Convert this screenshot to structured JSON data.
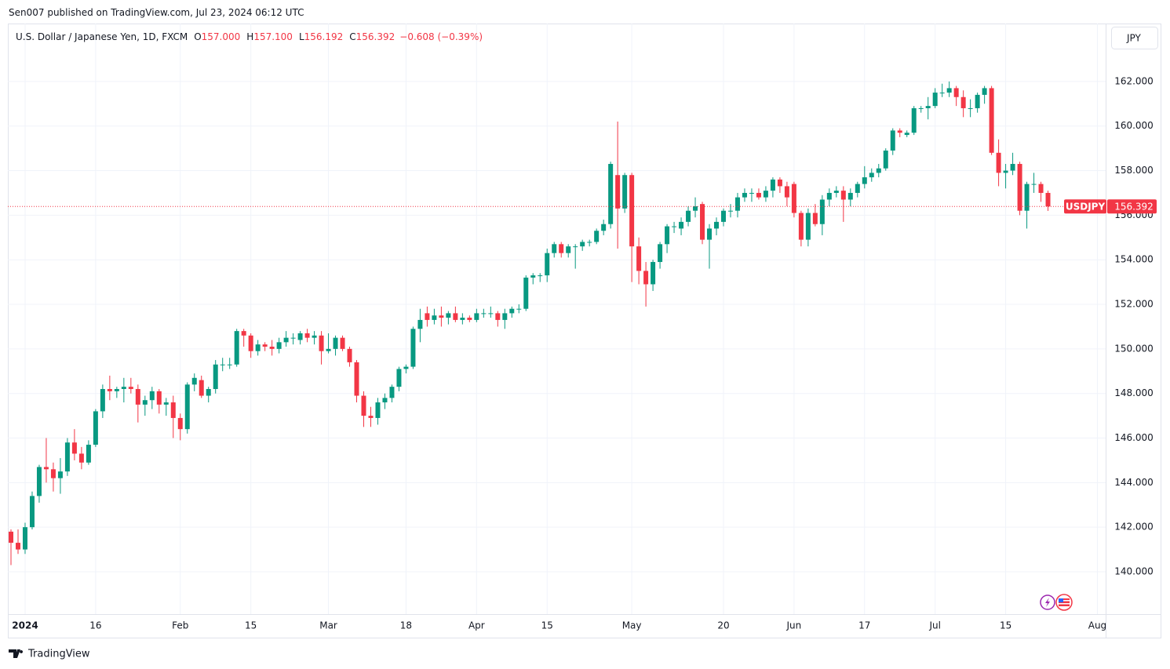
{
  "header": {
    "published": "Sen007 published on TradingView.com, Jul 23, 2024 06:12 UTC",
    "symbol": "U.S. Dollar / Japanese Yen, 1D, FXCM",
    "ohlc": [
      {
        "key": "O",
        "value": "157.000"
      },
      {
        "key": "H",
        "value": "157.100"
      },
      {
        "key": "L",
        "value": "156.192"
      },
      {
        "key": "C",
        "value": "156.392"
      }
    ],
    "change": "−0.608 (−0.39%)",
    "currency": "JPY"
  },
  "footer": {
    "brand": "TradingView"
  },
  "chart_data": {
    "type": "candlestick",
    "symbol_label": "USDJPY",
    "last_price": 156.392,
    "up_color": "#089981",
    "down_color": "#f23645",
    "grid": true,
    "ylim": [
      138.1,
      164.6
    ],
    "yticks": [
      {
        "value": 140,
        "label": "140.000"
      },
      {
        "value": 142,
        "label": "142.000"
      },
      {
        "value": 144,
        "label": "144.000"
      },
      {
        "value": 146,
        "label": "146.000"
      },
      {
        "value": 148,
        "label": "148.000"
      },
      {
        "value": 150,
        "label": "150.000"
      },
      {
        "value": 152,
        "label": "152.000"
      },
      {
        "value": 154,
        "label": "154.000"
      },
      {
        "value": 156,
        "label": "156.000"
      },
      {
        "value": 158,
        "label": "158.000"
      },
      {
        "value": 160,
        "label": "160.000"
      },
      {
        "value": 162,
        "label": "162.000"
      }
    ],
    "categories": [
      null,
      null,
      "2024",
      null,
      null,
      null,
      null,
      null,
      null,
      null,
      null,
      null,
      "16",
      null,
      null,
      null,
      null,
      null,
      null,
      null,
      null,
      null,
      null,
      null,
      "Feb",
      null,
      null,
      null,
      null,
      null,
      null,
      null,
      null,
      null,
      "15",
      null,
      null,
      null,
      null,
      null,
      null,
      null,
      null,
      null,
      null,
      "Mar",
      null,
      null,
      null,
      null,
      null,
      null,
      null,
      null,
      null,
      null,
      "18",
      null,
      null,
      null,
      null,
      null,
      null,
      null,
      null,
      null,
      "Apr",
      null,
      null,
      null,
      null,
      null,
      null,
      null,
      null,
      null,
      "15",
      null,
      null,
      null,
      null,
      null,
      null,
      null,
      null,
      null,
      null,
      null,
      "May",
      null,
      null,
      null,
      null,
      null,
      null,
      null,
      null,
      null,
      null,
      null,
      null,
      "20",
      null,
      null,
      null,
      null,
      null,
      null,
      null,
      null,
      null,
      "Jun",
      null,
      null,
      null,
      null,
      null,
      null,
      null,
      null,
      null,
      "17",
      null,
      null,
      null,
      null,
      null,
      null,
      null,
      null,
      null,
      "Jul",
      null,
      null,
      null,
      null,
      null,
      null,
      null,
      null,
      null,
      "15",
      null,
      null,
      null,
      null,
      null,
      null,
      null,
      null,
      null,
      null,
      null,
      null,
      "Aug"
    ],
    "ohlc": [
      [
        141.8,
        141.9,
        140.3,
        141.3
      ],
      [
        141.3,
        141.9,
        140.8,
        141.0
      ],
      [
        141.0,
        142.2,
        140.8,
        142.0
      ],
      [
        142.0,
        143.6,
        141.9,
        143.4
      ],
      [
        143.4,
        144.8,
        143.1,
        144.7
      ],
      [
        144.7,
        146.0,
        144.0,
        144.6
      ],
      [
        144.6,
        144.9,
        143.6,
        144.2
      ],
      [
        144.2,
        145.1,
        143.5,
        144.5
      ],
      [
        144.5,
        146.0,
        144.3,
        145.8
      ],
      [
        145.8,
        146.4,
        145.0,
        145.3
      ],
      [
        145.3,
        145.6,
        144.6,
        144.9
      ],
      [
        144.9,
        145.9,
        144.8,
        145.7
      ],
      [
        145.7,
        147.3,
        145.6,
        147.2
      ],
      [
        147.2,
        148.4,
        146.9,
        148.2
      ],
      [
        148.2,
        148.8,
        147.7,
        148.1
      ],
      [
        148.1,
        148.3,
        147.8,
        148.2
      ],
      [
        148.2,
        148.7,
        147.6,
        148.3
      ],
      [
        148.3,
        148.7,
        148.0,
        148.2
      ],
      [
        148.2,
        148.4,
        146.7,
        147.5
      ],
      [
        147.5,
        147.9,
        147.0,
        147.7
      ],
      [
        147.7,
        148.3,
        147.3,
        148.1
      ],
      [
        148.1,
        148.2,
        147.1,
        147.5
      ],
      [
        147.5,
        147.8,
        147.0,
        147.6
      ],
      [
        147.6,
        147.9,
        146.0,
        146.9
      ],
      [
        146.9,
        147.1,
        145.9,
        146.4
      ],
      [
        146.4,
        148.5,
        146.2,
        148.4
      ],
      [
        148.4,
        148.9,
        148.1,
        148.7
      ],
      [
        148.6,
        148.8,
        147.8,
        147.9
      ],
      [
        147.9,
        148.3,
        147.6,
        148.2
      ],
      [
        148.2,
        149.5,
        148.0,
        149.3
      ],
      [
        149.3,
        149.6,
        149.0,
        149.3
      ],
      [
        149.3,
        149.6,
        149.1,
        149.3
      ],
      [
        149.3,
        150.9,
        149.2,
        150.8
      ],
      [
        150.8,
        150.9,
        150.1,
        150.6
      ],
      [
        150.6,
        150.7,
        149.6,
        149.9
      ],
      [
        149.9,
        150.4,
        149.7,
        150.2
      ],
      [
        150.2,
        150.3,
        149.9,
        150.1
      ],
      [
        150.1,
        150.4,
        149.7,
        150.0
      ],
      [
        150.0,
        150.5,
        149.8,
        150.3
      ],
      [
        150.3,
        150.8,
        150.1,
        150.5
      ],
      [
        150.5,
        150.7,
        150.2,
        150.5
      ],
      [
        150.4,
        150.8,
        150.2,
        150.7
      ],
      [
        150.7,
        150.9,
        150.3,
        150.5
      ],
      [
        150.5,
        150.8,
        150.2,
        150.6
      ],
      [
        150.6,
        150.8,
        149.3,
        149.9
      ],
      [
        149.9,
        150.7,
        149.8,
        150.0
      ],
      [
        150.0,
        150.6,
        149.7,
        150.5
      ],
      [
        150.5,
        150.6,
        149.9,
        150.0
      ],
      [
        150.0,
        150.1,
        149.2,
        149.4
      ],
      [
        149.4,
        149.5,
        147.6,
        147.9
      ],
      [
        147.9,
        148.1,
        146.5,
        147.0
      ],
      [
        147.0,
        147.4,
        146.5,
        146.9
      ],
      [
        146.9,
        147.8,
        146.6,
        147.6
      ],
      [
        147.6,
        148.0,
        147.3,
        147.8
      ],
      [
        147.8,
        148.4,
        147.6,
        148.3
      ],
      [
        148.3,
        149.2,
        148.1,
        149.1
      ],
      [
        149.1,
        149.3,
        148.9,
        149.2
      ],
      [
        149.2,
        151.0,
        149.1,
        150.9
      ],
      [
        150.9,
        151.8,
        150.3,
        151.3
      ],
      [
        151.6,
        151.9,
        151.0,
        151.3
      ],
      [
        151.3,
        151.8,
        151.1,
        151.5
      ],
      [
        151.5,
        151.9,
        151.0,
        151.4
      ],
      [
        151.4,
        151.7,
        151.1,
        151.6
      ],
      [
        151.6,
        151.9,
        151.2,
        151.3
      ],
      [
        151.3,
        151.6,
        151.1,
        151.4
      ],
      [
        151.4,
        151.5,
        151.2,
        151.3
      ],
      [
        151.3,
        151.8,
        151.2,
        151.6
      ],
      [
        151.6,
        151.8,
        151.4,
        151.6
      ],
      [
        151.6,
        151.9,
        151.4,
        151.6
      ],
      [
        151.6,
        151.7,
        151.0,
        151.3
      ],
      [
        151.3,
        151.8,
        150.9,
        151.6
      ],
      [
        151.6,
        151.9,
        151.4,
        151.8
      ],
      [
        151.8,
        152.0,
        151.6,
        151.8
      ],
      [
        151.8,
        153.3,
        151.7,
        153.2
      ],
      [
        153.2,
        153.4,
        152.9,
        153.3
      ],
      [
        153.3,
        153.4,
        153.0,
        153.3
      ],
      [
        153.3,
        154.5,
        153.0,
        154.3
      ],
      [
        154.3,
        154.8,
        154.1,
        154.7
      ],
      [
        154.7,
        154.8,
        154.1,
        154.3
      ],
      [
        154.3,
        154.7,
        154.1,
        154.6
      ],
      [
        154.6,
        154.7,
        153.6,
        154.6
      ],
      [
        154.6,
        154.9,
        154.4,
        154.8
      ],
      [
        154.8,
        154.9,
        154.6,
        154.8
      ],
      [
        154.8,
        155.4,
        154.7,
        155.3
      ],
      [
        155.3,
        155.8,
        155.1,
        155.6
      ],
      [
        155.6,
        158.4,
        155.4,
        158.3
      ],
      [
        157.8,
        160.2,
        154.5,
        156.3
      ],
      [
        156.3,
        157.9,
        156.1,
        157.8
      ],
      [
        157.8,
        157.9,
        153.0,
        154.6
      ],
      [
        154.6,
        155.0,
        152.9,
        153.5
      ],
      [
        153.5,
        153.9,
        151.9,
        152.9
      ],
      [
        152.9,
        154.0,
        152.6,
        153.9
      ],
      [
        153.9,
        154.8,
        153.6,
        154.7
      ],
      [
        154.7,
        155.6,
        154.3,
        155.5
      ],
      [
        155.5,
        155.7,
        155.2,
        155.5
      ],
      [
        155.4,
        155.9,
        155.1,
        155.7
      ],
      [
        155.7,
        156.4,
        155.5,
        156.2
      ],
      [
        156.2,
        156.8,
        155.9,
        156.4
      ],
      [
        156.5,
        156.6,
        154.7,
        154.9
      ],
      [
        154.9,
        155.6,
        153.6,
        155.4
      ],
      [
        155.4,
        155.9,
        155.1,
        155.7
      ],
      [
        155.7,
        156.3,
        155.5,
        156.2
      ],
      [
        156.2,
        156.5,
        155.9,
        156.2
      ],
      [
        156.2,
        157.0,
        155.9,
        156.8
      ],
      [
        156.8,
        157.2,
        156.6,
        157.0
      ],
      [
        157.0,
        157.2,
        156.6,
        157.0
      ],
      [
        157.0,
        157.2,
        156.7,
        156.8
      ],
      [
        156.8,
        157.3,
        156.6,
        157.1
      ],
      [
        157.1,
        157.7,
        156.8,
        157.6
      ],
      [
        157.6,
        157.7,
        157.0,
        157.3
      ],
      [
        157.3,
        157.5,
        156.4,
        156.8
      ],
      [
        157.4,
        157.5,
        155.9,
        156.1
      ],
      [
        156.1,
        156.2,
        154.6,
        154.9
      ],
      [
        154.9,
        156.3,
        154.6,
        156.1
      ],
      [
        156.1,
        156.5,
        155.5,
        155.6
      ],
      [
        155.6,
        156.9,
        155.1,
        156.7
      ],
      [
        156.7,
        157.2,
        156.4,
        157.0
      ],
      [
        157.0,
        157.3,
        156.8,
        157.1
      ],
      [
        157.1,
        157.3,
        155.7,
        156.7
      ],
      [
        156.7,
        157.2,
        156.4,
        157.0
      ],
      [
        157.0,
        157.5,
        156.8,
        157.4
      ],
      [
        157.4,
        158.2,
        157.2,
        157.7
      ],
      [
        157.7,
        158.1,
        157.5,
        157.9
      ],
      [
        157.9,
        158.3,
        157.7,
        158.1
      ],
      [
        158.1,
        159.0,
        158.0,
        158.9
      ],
      [
        158.9,
        159.9,
        158.7,
        159.8
      ],
      [
        159.8,
        159.9,
        159.5,
        159.7
      ],
      [
        159.6,
        159.8,
        159.5,
        159.7
      ],
      [
        159.7,
        160.9,
        159.6,
        160.8
      ],
      [
        160.8,
        160.9,
        160.6,
        160.8
      ],
      [
        160.8,
        161.3,
        160.3,
        160.9
      ],
      [
        160.9,
        161.7,
        160.8,
        161.5
      ],
      [
        161.5,
        161.9,
        161.3,
        161.5
      ],
      [
        161.5,
        162.0,
        161.3,
        161.7
      ],
      [
        161.7,
        161.8,
        160.9,
        161.3
      ],
      [
        161.3,
        161.6,
        160.4,
        160.8
      ],
      [
        160.8,
        161.2,
        160.4,
        160.8
      ],
      [
        160.8,
        161.5,
        160.6,
        161.4
      ],
      [
        161.4,
        161.8,
        161.0,
        161.7
      ],
      [
        161.7,
        161.8,
        158.7,
        158.8
      ],
      [
        158.8,
        159.4,
        157.3,
        157.9
      ],
      [
        157.9,
        158.3,
        157.2,
        158.0
      ],
      [
        158.0,
        158.8,
        157.8,
        158.3
      ],
      [
        158.3,
        158.4,
        156.0,
        156.2
      ],
      [
        156.2,
        157.5,
        155.4,
        157.4
      ],
      [
        157.4,
        157.9,
        157.0,
        157.4
      ],
      [
        157.4,
        157.5,
        156.6,
        157.0
      ],
      [
        157.0,
        157.1,
        156.192,
        156.392
      ],
      null,
      null,
      null,
      null,
      null,
      null,
      null
    ]
  }
}
